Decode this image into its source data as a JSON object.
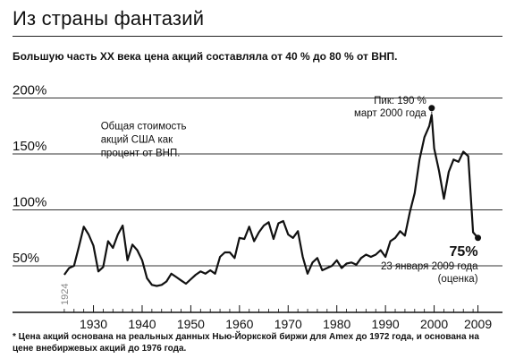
{
  "title": "Из страны фантазий",
  "subtitle": "Большую часть XX века цена акций составляла от 40 % до 80 % от ВНП.",
  "footnote": "* Цена акций основана на реальных данных Нью-Йоркской биржи для Amex до 1972 года, и основана на цене внебиржевых акций до 1976 года.",
  "chart_data": {
    "type": "line",
    "title": "Общая стоимость акций США как процент от ВНП.",
    "xlim": [
      1922,
      2010
    ],
    "ylim": [
      10,
      210
    ],
    "y_ticks": [
      {
        "value": 50,
        "label": "50%"
      },
      {
        "value": 100,
        "label": "100%"
      },
      {
        "value": 150,
        "label": "150%"
      },
      {
        "value": 200,
        "label": "200%"
      }
    ],
    "x_ticks": [
      {
        "value": 1930,
        "label": "1930"
      },
      {
        "value": 1940,
        "label": "1940"
      },
      {
        "value": 1950,
        "label": "1950"
      },
      {
        "value": 1960,
        "label": "1960"
      },
      {
        "value": 1970,
        "label": "1970"
      },
      {
        "value": 1980,
        "label": "1980"
      },
      {
        "value": 1990,
        "label": "1990"
      },
      {
        "value": 2000,
        "label": "2000"
      },
      {
        "value": 2009,
        "label": "2009"
      }
    ],
    "start_label": {
      "x": 1924,
      "text": "1924"
    },
    "series": [
      {
        "color": "#111111",
        "x": [
          1924,
          1925,
          1926,
          1927,
          1928,
          1929,
          1930,
          1931,
          1932,
          1933,
          1934,
          1935,
          1936,
          1937,
          1938,
          1939,
          1940,
          1941,
          1942,
          1943,
          1944,
          1945,
          1946,
          1947,
          1948,
          1949,
          1950,
          1951,
          1952,
          1953,
          1954,
          1955,
          1956,
          1957,
          1958,
          1959,
          1960,
          1961,
          1962,
          1963,
          1964,
          1965,
          1966,
          1967,
          1968,
          1969,
          1970,
          1971,
          1972,
          1973,
          1974,
          1975,
          1976,
          1977,
          1978,
          1979,
          1980,
          1981,
          1982,
          1983,
          1984,
          1985,
          1986,
          1987,
          1988,
          1989,
          1990,
          1991,
          1992,
          1993,
          1994,
          1995,
          1996,
          1997,
          1998,
          1999,
          1999.5,
          2000,
          2001,
          2002,
          2003,
          2004,
          2005,
          2006,
          2007,
          2008,
          2009
        ],
        "y": [
          42,
          48,
          50,
          67,
          85,
          78,
          68,
          45,
          49,
          72,
          66,
          78,
          86,
          55,
          69,
          64,
          55,
          39,
          33,
          32,
          33,
          36,
          43,
          40,
          37,
          34,
          38,
          42,
          45,
          43,
          46,
          43,
          58,
          62,
          62,
          57,
          75,
          74,
          85,
          72,
          80,
          86,
          89,
          74,
          88,
          90,
          78,
          75,
          81,
          58,
          43,
          53,
          57,
          46,
          48,
          50,
          55,
          48,
          52,
          53,
          51,
          57,
          60,
          58,
          60,
          64,
          58,
          72,
          75,
          81,
          77,
          98,
          115,
          145,
          165,
          175,
          185,
          155,
          135,
          110,
          134,
          145,
          143,
          152,
          148,
          80,
          75
        ]
      }
    ],
    "annotations": [
      {
        "text": "Общая стоимость",
        "x": 1931.5,
        "y": 172
      },
      {
        "text": "акций США как",
        "x": 1931.5,
        "y": 160
      },
      {
        "text": "процент от ВНП.",
        "x": 1931.5,
        "y": 148
      }
    ],
    "peak": {
      "x": 1999.5,
      "y": 191,
      "label_line1": "Пик: 190 %",
      "label_line2": "март 2000 года"
    },
    "end_point": {
      "x": 2009,
      "y": 75,
      "value_label": "75%",
      "date_label": "23 января 2009 года",
      "note_label": "(оценка)"
    }
  }
}
